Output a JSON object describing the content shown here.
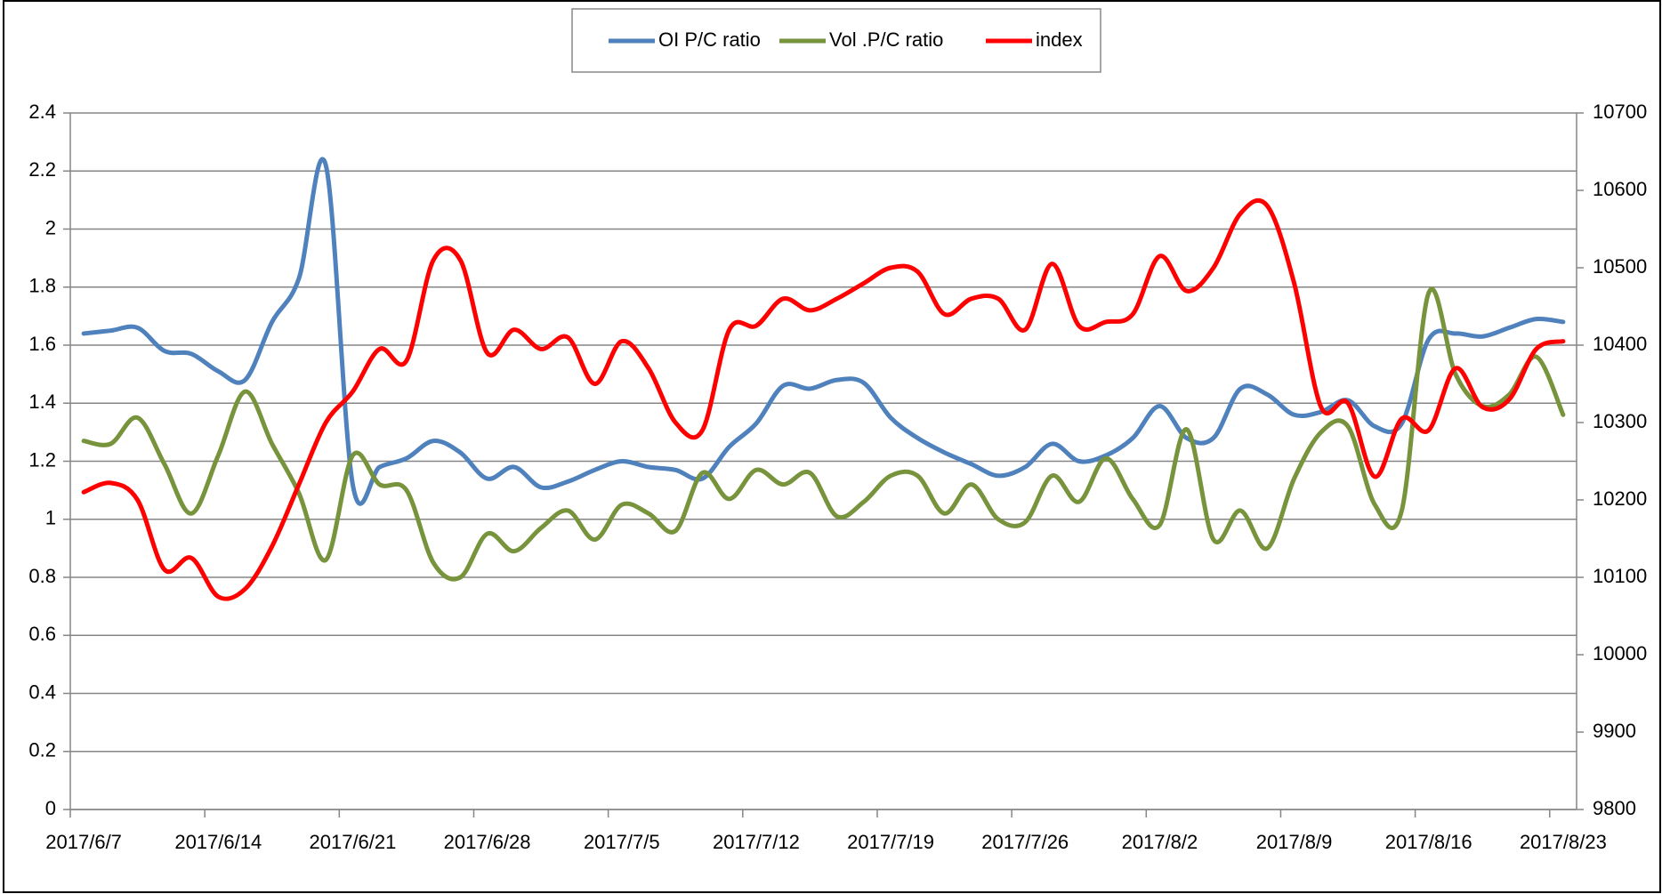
{
  "chart_data": {
    "type": "line",
    "legend": "top",
    "grid": true,
    "categories": [
      "2017/6/7",
      null,
      null,
      null,
      null,
      "2017/6/14",
      null,
      null,
      null,
      null,
      "2017/6/21",
      null,
      null,
      null,
      null,
      "2017/6/28",
      null,
      null,
      null,
      null,
      "2017/7/5",
      null,
      null,
      null,
      null,
      "2017/7/12",
      null,
      null,
      null,
      null,
      "2017/7/19",
      null,
      null,
      null,
      null,
      "2017/7/26",
      null,
      null,
      null,
      null,
      "2017/8/2",
      null,
      null,
      null,
      null,
      "2017/8/9",
      null,
      null,
      null,
      null,
      "2017/8/16",
      null,
      null,
      null,
      null,
      "2017/8/23"
    ],
    "ylim": [
      0,
      2.4
    ],
    "yticks": [
      0,
      0.2,
      0.4,
      0.6,
      0.8,
      1,
      1.2,
      1.4,
      1.6,
      1.8,
      2,
      2.2,
      2.4
    ],
    "y2lim": [
      9800,
      10700
    ],
    "y2ticks": [
      9800,
      9900,
      10000,
      10100,
      10200,
      10300,
      10400,
      10500,
      10600,
      10700
    ],
    "series": [
      {
        "name": "OI P/C ratio",
        "color": "#4f81bd",
        "values": [
          1.64,
          1.65,
          1.66,
          1.58,
          1.57,
          1.51,
          1.48,
          1.68,
          1.83,
          2.22,
          1.12,
          1.18,
          1.21,
          1.27,
          1.23,
          1.14,
          1.18,
          1.11,
          1.13,
          1.17,
          1.2,
          1.18,
          1.17,
          1.14,
          1.25,
          1.33,
          1.46,
          1.45,
          1.48,
          1.47,
          1.35,
          1.28,
          1.23,
          1.19,
          1.15,
          1.18,
          1.26,
          1.2,
          1.22,
          1.28,
          1.39,
          1.28,
          1.28,
          1.45,
          1.43,
          1.36,
          1.37,
          1.41,
          1.32,
          1.33,
          1.62,
          1.64,
          1.63,
          1.66,
          1.69,
          1.68
        ]
      },
      {
        "name": "Vol .P/C ratio",
        "color": "#77933c",
        "values": [
          1.27,
          1.26,
          1.35,
          1.19,
          1.02,
          1.22,
          1.44,
          1.26,
          1.09,
          0.86,
          1.22,
          1.12,
          1.1,
          0.85,
          0.8,
          0.95,
          0.89,
          0.97,
          1.03,
          0.93,
          1.05,
          1.02,
          0.96,
          1.16,
          1.07,
          1.17,
          1.12,
          1.16,
          1.01,
          1.06,
          1.15,
          1.15,
          1.02,
          1.12,
          1.0,
          0.99,
          1.15,
          1.06,
          1.21,
          1.07,
          0.98,
          1.31,
          0.93,
          1.03,
          0.9,
          1.14,
          1.3,
          1.32,
          1.05,
          1.03,
          1.78,
          1.5,
          1.39,
          1.43,
          1.56,
          1.36
        ]
      },
      {
        "name": "index",
        "color": "#ff0000",
        "axis": "y2",
        "values": [
          10210,
          10222,
          10200,
          10110,
          10125,
          10075,
          10085,
          10140,
          10220,
          10300,
          10340,
          10395,
          10380,
          10510,
          10510,
          10390,
          10420,
          10395,
          10410,
          10350,
          10405,
          10370,
          10300,
          10290,
          10420,
          10425,
          10460,
          10445,
          10460,
          10480,
          10500,
          10495,
          10440,
          10460,
          10460,
          10420,
          10505,
          10425,
          10430,
          10440,
          10515,
          10470,
          10500,
          10570,
          10580,
          10480,
          10320,
          10325,
          10230,
          10305,
          10290,
          10370,
          10320,
          10330,
          10395,
          10405
        ]
      }
    ]
  }
}
